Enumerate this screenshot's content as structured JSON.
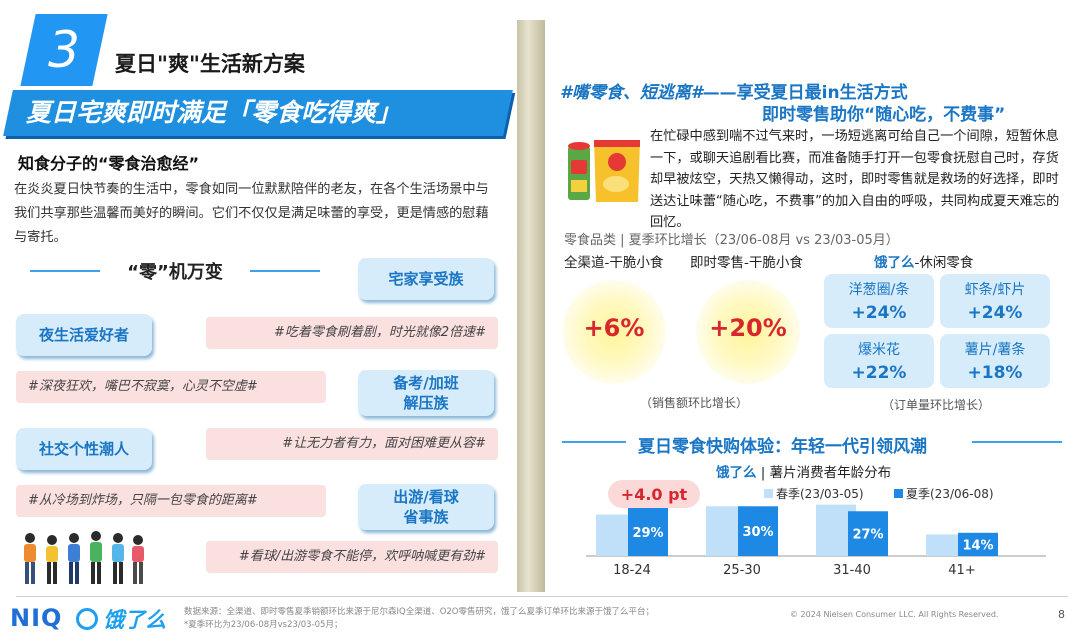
{
  "section": {
    "number": "3",
    "title": "夏日\"爽\"生活新方案"
  },
  "banner": "夏日宅爽即时满足「零食吃得爽」",
  "left": {
    "subhead": "知食分子的“零食治愈经”",
    "intro": "在炎炎夏日快节奏的生活中，零食如同一位默默陪伴的老友，在各个生活场景中与我们共享那些温馨而美好的瞬间。它们不仅仅是满足味蕾的享受，更是情感的慰藉与寄托。",
    "wanbian": "“零”机万变",
    "tags": {
      "home": "宅家享受族",
      "night": "夜生活爱好者",
      "exam": "备考/加班\n解压族",
      "social": "社交个性潮人",
      "outing": "出游/看球\n省事族"
    },
    "quotes": {
      "q1": "#吃着零食刷着剧，时光就像2倍速#",
      "q2": "#深夜狂欢，嘴巴不寂寞，心灵不空虚#",
      "q3": "#让无力者有力，面对困难更从容#",
      "q4": "#从冷场到炸场，只隔一包零食的距离#",
      "q5": "#看球/出游零食不能停，欢呼呐喊更有劲#"
    }
  },
  "right": {
    "title_tag": "#嘴零食、短逃离#",
    "title_rest": "——享受夏日最in生活方式",
    "title2": "即时零售助你“随心吃，不费事”",
    "paragraph": "在忙碌中感到喘不过气来时，一场短逃离可给自己一个间隙，短暂休息一下，或聊天追剧看比赛，而准备随手打开一包零食抚慰自己时，存货却早被炫空，天热又懒得动，这时，即时零售就是救场的好选择，即时送达让味蕾“随心吃，不费事”的加入自由的呼吸，共同构成夏天难忘的回忆。",
    "category_head": "零食品类 | 夏季环比增长（23/06-08月 vs 23/03-05月）",
    "col1": "全渠道-干脆小食",
    "col2": "即时零售-干脆小食",
    "col3_brand": "饿了么",
    "col3_rest": "-休闲零食",
    "v1": "+6%",
    "v2": "+20%",
    "note_sales": "（销售额环比增长）",
    "note_orders": "（订单量环比增长）",
    "cats": [
      {
        "name": "洋葱圈/条",
        "value": "+24%"
      },
      {
        "name": "虾条/虾片",
        "value": "+24%"
      },
      {
        "name": "爆米花",
        "value": "+22%"
      },
      {
        "name": "薯片/薯条",
        "value": "+18%"
      }
    ],
    "exp_title": "夏日零食快购体验：年轻一代引领风潮",
    "age_brand": "饿了么",
    "age_rest": " | 薯片消费者年龄分布"
  },
  "chart_data": {
    "type": "bar",
    "categories": [
      "18-24",
      "25-30",
      "31-40",
      "41+"
    ],
    "series": [
      {
        "name": "春季(23/03-05)",
        "values": [
          25,
          30,
          31,
          13
        ]
      },
      {
        "name": "夏季(23/06-08)",
        "values": [
          29,
          30,
          27,
          14
        ]
      }
    ],
    "data_labels": [
      "29%",
      "30%",
      "27%",
      "14%"
    ],
    "annotation": "+4.0 pt",
    "colors": {
      "spring": "#bfe0f8",
      "summer": "#1e88e5"
    },
    "legend_position": "top-right",
    "ylim": [
      0,
      35
    ]
  },
  "footer": {
    "logo_niq": "NIQ",
    "logo_ele": "饿了么",
    "source": "数据来源：全渠道、即时零售夏季销额环比来源于尼尔森IQ全渠道、O2O零售研究，饿了么夏季订单环比来源于饿了么平台；",
    "source2": "*夏季环比为23/06-08月vs23/03-05月；",
    "copyright": "© 2024 Nielsen Consumer LLC. All Rights Reserved.",
    "page": "8"
  }
}
